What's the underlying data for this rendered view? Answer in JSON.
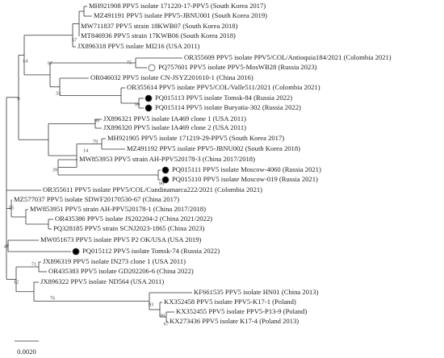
{
  "leaves": [
    "MH921908 PPV5 isolate 171220-17-PPV5 (South Korea 2017)",
    "MZ491191 PPV5 isolate PPV5-JBNU001 (South Korea 2019)",
    "MW711837 PPV5 strain 18KWB07 (South Korea 2018)",
    "MT846936 PPV5 strain 17KWB06 (South Korea 2018)",
    "JX896318 PPV5 isolate MI216 (USA 2011)",
    "OR355609 PPV5 isolate PPV5/COL/Antioquia184/2021 (Colombia 2021)",
    "PQ757601 PPV5 isolate PPV5-MosWB28 (Russia 2023)",
    "OR046032 PPV5 isolate CN-JSYZ201610-1 (China 2016)",
    "OR355614 PPV5 isolate PPV5/COL/Valle511/2021 (Colombia 2021)",
    "PQ015113 PPV5 isolate Tomsk-84 (Russia 2022)",
    "PQ015114 PPV5 isolate Buryatia-302 (Russia 2022)",
    "JX896321 PPV5 isolate IA469 clone 1 (USA 2011)",
    "JX896320 PPV5 isolate IA469 clone 2 (USA 2011)",
    "MH921905 PPV5 isolate 171219-29-PPV5 (South Korea 2017)",
    "MZ491192 PPV5 isolate PPV5-JBNU002 (South Korea 2018)",
    "MW853953 PPV5 strain AH-PPV520178-3 (China 2017/2018)",
    "PQ015111 PPV5 isolate Moscow-4060 (Russia 2021)",
    "PQ015110 PPV5 isolate Moscow-019 (Russia 2021)",
    "OR355611 PPV5 isolate PPV5/COL/Cundinamarca222/2021 (Colombia 2021)",
    "MZ577037 PPV5 isolate SDWF20170530-67 (China 2017)",
    "MW853951 PPV5 strain AH-PPV520178-1 (China 2017/2018)",
    "OR435386 PPV5 isolate JS202204-2 (China 2021/2022)",
    "PQ328185 PPV5 strain SCNJ2023-1865 (China 2023)",
    "MW051673 PPV5 isolate PPV5 P2 OK/USA (USA 2019)",
    "PQ015112 PPV5 isolate Tomsk-74 (Russia 2022)",
    "JX896319 PPV5 isolate IN273 clone 1 (USA 2011)",
    "OR435383 PPV5 isolate GD202206-6 (China 2022)",
    "JX896322 PPV5 isolate ND564 (USA 2011)",
    "KF661535 PPV5 isolate HN01 (China 2013)",
    "KX352458 PPV5 isolate PPV5-K17-1 (Poland)",
    "KX352455 PPV5 isolate PPV5-P13-9 (Poland)",
    "KX273436 PPV5 isolate K17-4 (Poland 2013)"
  ],
  "bootstrap": [
    "57",
    "97",
    "14",
    "75",
    "9",
    "33",
    "99",
    "99",
    "79",
    "14",
    "39",
    "99",
    "55",
    "47",
    "71",
    "12",
    "76",
    "93",
    "99",
    "67"
  ],
  "scale_bar": "0.0020"
}
